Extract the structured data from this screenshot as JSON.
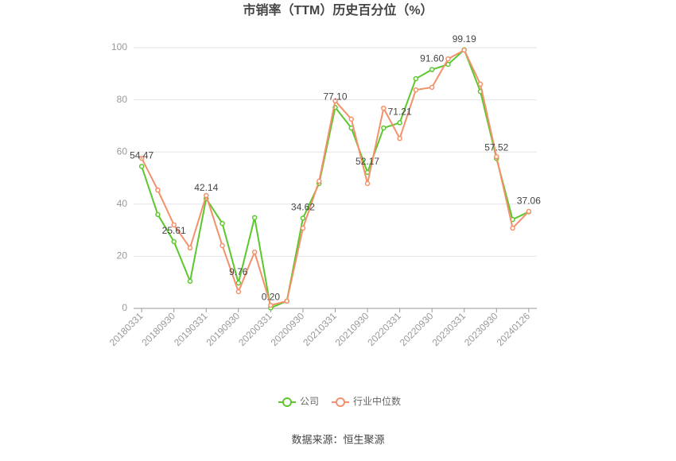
{
  "chart_data": {
    "type": "line",
    "title": "市销率（TTM）历史百分位（%）",
    "source": "数据来源：恒生聚源",
    "categories": [
      "20180331",
      null,
      "20180930",
      null,
      "20190331",
      null,
      "20190930",
      null,
      "20200331",
      null,
      "20200930",
      null,
      "20210331",
      null,
      "20210930",
      null,
      "20220331",
      null,
      "20220930",
      null,
      "20230331",
      null,
      "20230930",
      null,
      "20240126"
    ],
    "series": [
      {
        "name": "公司",
        "color": "#5cc72d",
        "values": [
          54.47,
          36,
          25.61,
          10.4,
          42.14,
          32.6,
          9.76,
          34.8,
          0.2,
          2.8,
          34.62,
          47.9,
          77.1,
          69.2,
          52.17,
          69.2,
          71.21,
          88.1,
          91.6,
          93.6,
          99.19,
          83.2,
          57.52,
          34.1,
          37.06
        ],
        "value_labels": [
          "54.47",
          null,
          "25.61",
          null,
          "42.14",
          null,
          "9.76",
          null,
          "0.20",
          null,
          "34.62",
          null,
          "77.10",
          null,
          "52.17",
          null,
          "71.21",
          null,
          "91.60",
          null,
          "99.19",
          null,
          "57.52",
          null,
          "37.06"
        ]
      },
      {
        "name": "行业中位数",
        "color": "#f4906a",
        "values": [
          57.6,
          45.4,
          32,
          23.2,
          43.3,
          24.1,
          6.4,
          21.6,
          1.2,
          2.8,
          30.8,
          48.8,
          79.6,
          72.6,
          47.9,
          76.8,
          65.2,
          83.8,
          84.8,
          95.7,
          99.1,
          86,
          58.2,
          30.8,
          37.2
        ]
      }
    ],
    "ylim": [
      0,
      100
    ],
    "yticks": [
      0,
      20,
      40,
      60,
      80,
      100
    ],
    "grid": true
  }
}
